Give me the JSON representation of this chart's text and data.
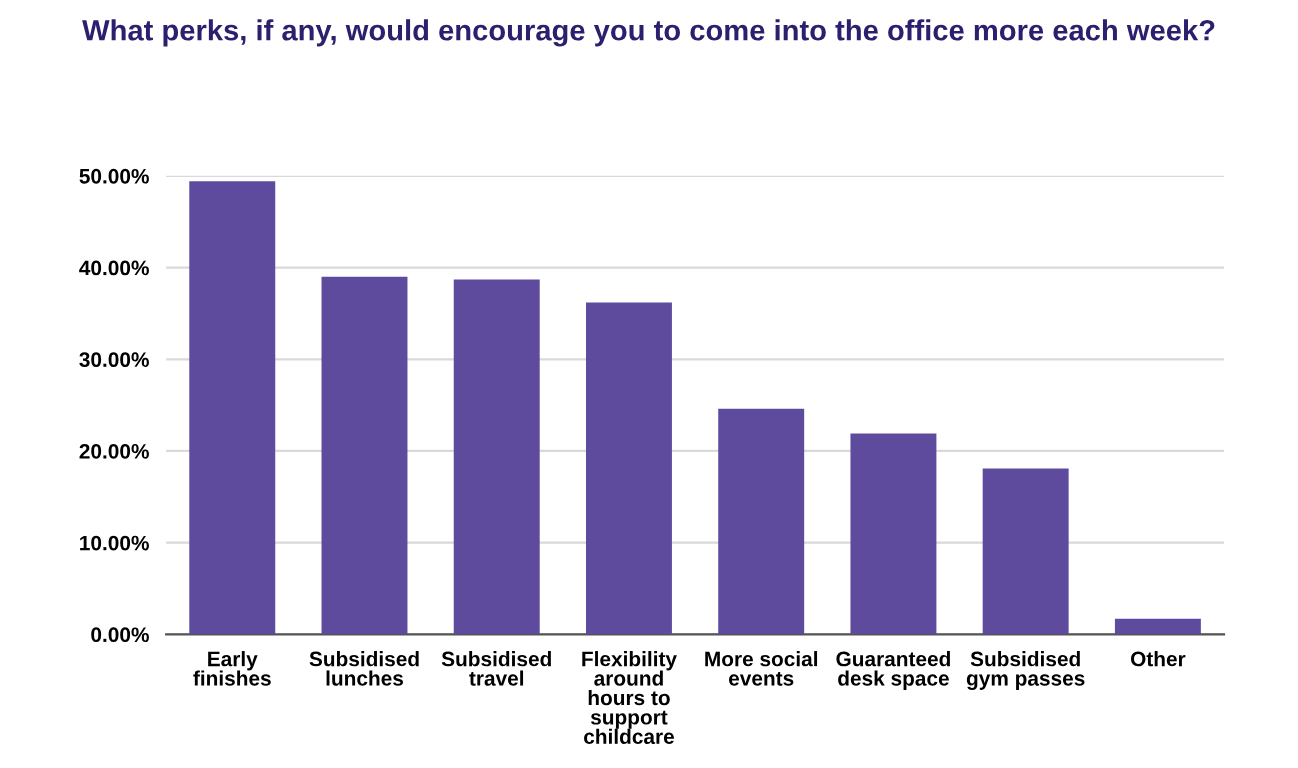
{
  "chart_data": {
    "type": "bar",
    "title": "What perks, if any, would encourage you to come into the office more each week?",
    "categories": [
      "Early\nfinishes",
      "Subsidised\nlunches",
      "Subsidised\ntravel",
      "Flexibility\naround\nhours to\nsupport\nchildcare",
      "More social\nevents",
      "Guaranteed\ndesk space",
      "Subsidised\ngym passes",
      "Other"
    ],
    "values": [
      49.4,
      39.0,
      38.7,
      36.2,
      24.6,
      21.9,
      18.1,
      1.7
    ],
    "color": "#5f4b9e",
    "ylim": [
      0,
      50
    ],
    "yticks": [
      {
        "value": 0,
        "label": "0.00%"
      },
      {
        "value": 10,
        "label": "10.00%"
      },
      {
        "value": 20,
        "label": "20.00%"
      },
      {
        "value": 30,
        "label": "30.00%"
      },
      {
        "value": 40,
        "label": "40.00%"
      },
      {
        "value": 50,
        "label": "50.00%"
      }
    ],
    "grid": "y",
    "legend": false
  }
}
